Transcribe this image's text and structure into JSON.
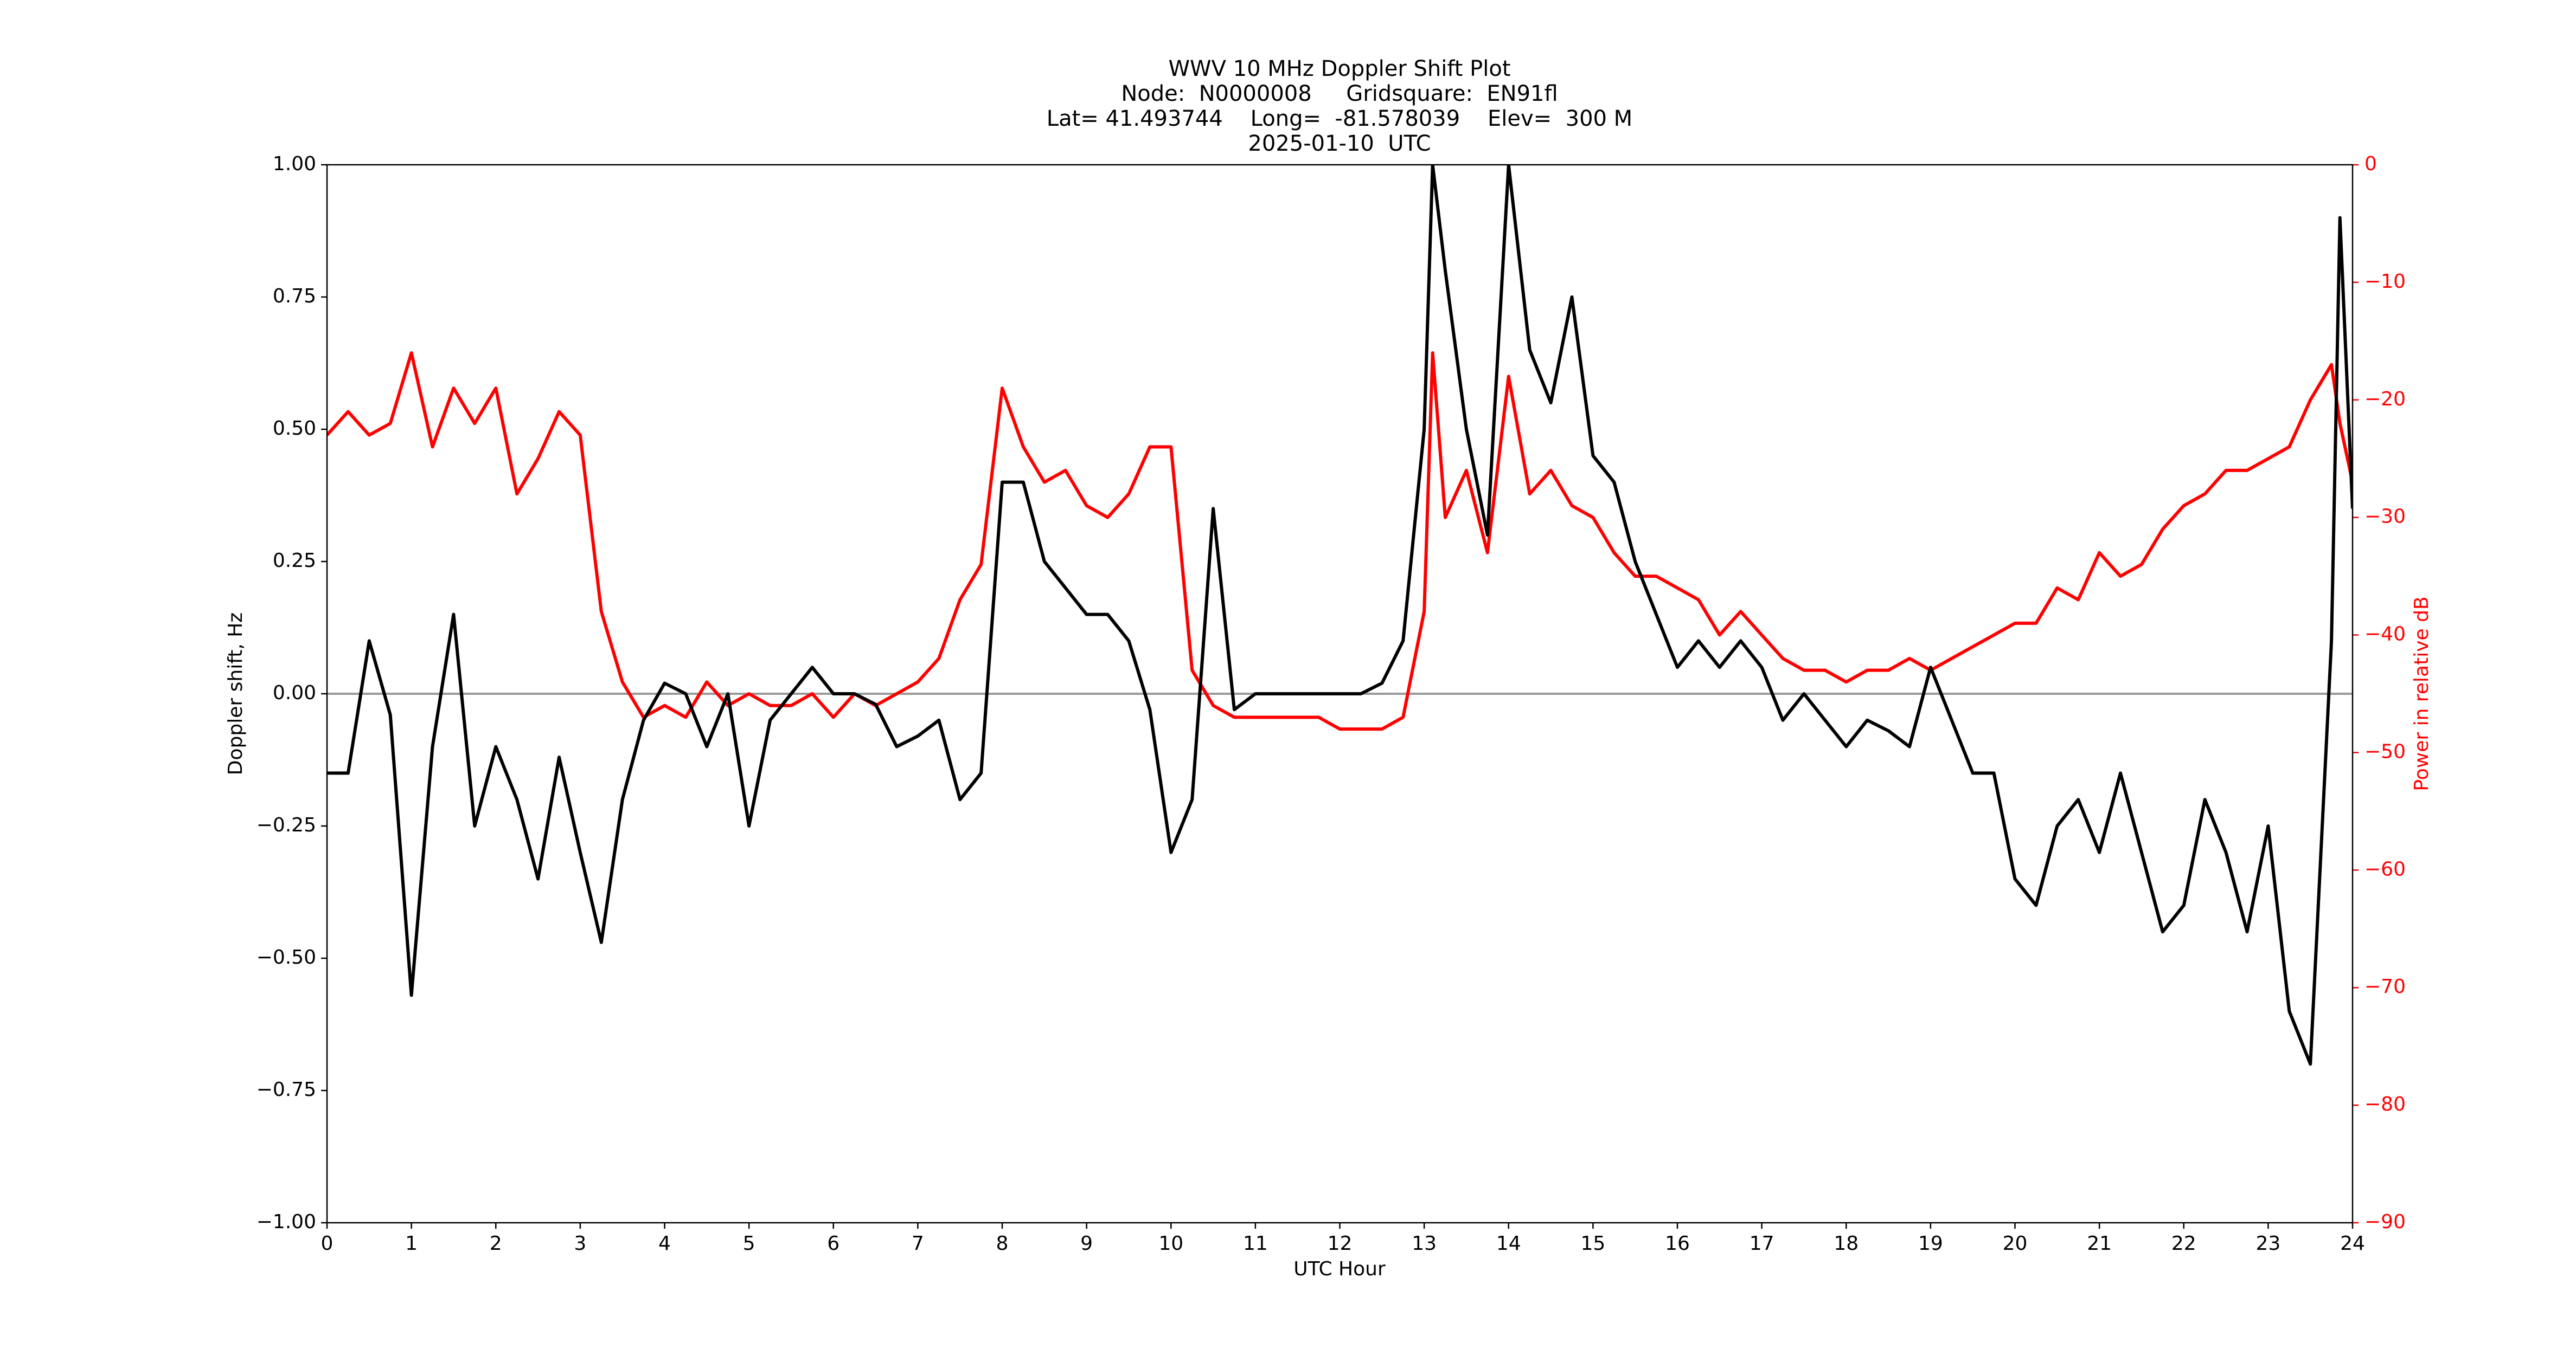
{
  "chart_data": {
    "type": "line",
    "title": "WWV 10 MHz Doppler Shift Plot",
    "subtitle": [
      "Node:  N0000008     Gridsquare:  EN91fl",
      "Lat= 41.493744    Long=  -81.578039    Elev=  300 M",
      "2025-01-10  UTC"
    ],
    "x_label": "UTC Hour",
    "y_label": "Doppler shift, Hz",
    "y2_label": "Power in relative dB",
    "x": [
      0,
      0.25,
      0.5,
      0.75,
      1,
      1.25,
      1.5,
      1.75,
      2,
      2.25,
      2.5,
      2.75,
      3,
      3.25,
      3.5,
      3.75,
      4,
      4.25,
      4.5,
      4.75,
      5,
      5.25,
      5.5,
      5.75,
      6,
      6.25,
      6.5,
      6.75,
      7,
      7.25,
      7.5,
      7.75,
      8,
      8.25,
      8.5,
      8.75,
      9,
      9.25,
      9.5,
      9.75,
      10,
      10.25,
      10.5,
      10.75,
      11,
      11.25,
      11.5,
      11.75,
      12,
      12.25,
      12.5,
      12.75,
      13,
      13.1,
      13.25,
      13.5,
      13.75,
      14,
      14.25,
      14.5,
      14.75,
      15,
      15.25,
      15.5,
      15.75,
      16,
      16.25,
      16.5,
      16.75,
      17,
      17.25,
      17.5,
      17.75,
      18,
      18.25,
      18.5,
      18.75,
      19,
      19.25,
      19.5,
      19.75,
      20,
      20.25,
      20.5,
      20.75,
      21,
      21.25,
      21.5,
      21.75,
      22,
      22.25,
      22.5,
      22.75,
      23,
      23.25,
      23.5,
      23.75,
      23.85,
      24
    ],
    "series": [
      {
        "color": "#000000",
        "values": [
          -0.15,
          -0.15,
          0.1,
          -0.04,
          -0.57,
          -0.1,
          0.15,
          -0.25,
          -0.1,
          -0.2,
          -0.35,
          -0.12,
          -0.3,
          -0.47,
          -0.2,
          -0.05,
          0.02,
          0,
          -0.1,
          0,
          -0.25,
          -0.05,
          0,
          0.05,
          0,
          0,
          -0.02,
          -0.1,
          -0.08,
          -0.05,
          -0.2,
          -0.15,
          0.4,
          0.4,
          0.25,
          0.2,
          0.15,
          0.15,
          0.1,
          -0.03,
          -0.3,
          -0.2,
          0.35,
          -0.03,
          0,
          0,
          0,
          0,
          0,
          0,
          0.02,
          0.1,
          0.5,
          1.0,
          0.8,
          0.5,
          0.3,
          1.0,
          0.65,
          0.55,
          0.75,
          0.45,
          0.4,
          0.25,
          0.15,
          0.05,
          0.1,
          0.05,
          0.1,
          0.05,
          -0.05,
          0,
          -0.05,
          -0.1,
          -0.05,
          -0.07,
          -0.1,
          0.05,
          -0.05,
          -0.15,
          -0.15,
          -0.35,
          -0.4,
          -0.25,
          -0.2,
          -0.3,
          -0.15,
          -0.3,
          -0.45,
          -0.4,
          -0.2,
          -0.3,
          -0.45,
          -0.25,
          -0.6,
          -0.7,
          0.1,
          0.9,
          0.35
        ]
      },
      {
        "color": "#ff0000",
        "axis": "y2",
        "values": [
          -23,
          -21,
          -23,
          -22,
          -16,
          -24,
          -19,
          -22,
          -19,
          -28,
          -25,
          -21,
          -23,
          -38,
          -44,
          -47,
          -46,
          -47,
          -44,
          -46,
          -45,
          -46,
          -46,
          -45,
          -47,
          -45,
          -46,
          -45,
          -44,
          -42,
          -37,
          -34,
          -19,
          -24,
          -27,
          -26,
          -29,
          -30,
          -28,
          -24,
          -24,
          -43,
          -46,
          -47,
          -47,
          -47,
          -47,
          -47,
          -48,
          -48,
          -48,
          -47,
          -38,
          -16,
          -30,
          -26,
          -33,
          -18,
          -28,
          -26,
          -29,
          -30,
          -33,
          -35,
          -35,
          -36,
          -37,
          -40,
          -38,
          -40,
          -42,
          -43,
          -43,
          -44,
          -43,
          -43,
          -42,
          -43,
          -42,
          -41,
          -40,
          -39,
          -39,
          -36,
          -37,
          -33,
          -35,
          -34,
          -31,
          -29,
          -28,
          -26,
          -26,
          -25,
          -24,
          -20,
          -17,
          -22,
          -27
        ]
      }
    ],
    "xlim": [
      0,
      24
    ],
    "xticks": [
      0,
      1,
      2,
      3,
      4,
      5,
      6,
      7,
      8,
      9,
      10,
      11,
      12,
      13,
      14,
      15,
      16,
      17,
      18,
      19,
      20,
      21,
      22,
      23,
      24
    ],
    "ylim": [
      -1,
      1
    ],
    "yticks": [
      {
        "value": -1,
        "label": "−1.00"
      },
      {
        "value": -0.75,
        "label": "−0.75"
      },
      {
        "value": -0.5,
        "label": "−0.50"
      },
      {
        "value": -0.25,
        "label": "−0.25"
      },
      {
        "value": 0,
        "label": "0.00"
      },
      {
        "value": 0.25,
        "label": "0.25"
      },
      {
        "value": 0.5,
        "label": "0.50"
      },
      {
        "value": 0.75,
        "label": "0.75"
      },
      {
        "value": 1,
        "label": "1.00"
      }
    ],
    "y2lim": [
      -90,
      0
    ],
    "y2ticks": [
      {
        "value": -90,
        "label": "−90"
      },
      {
        "value": -80,
        "label": "−80"
      },
      {
        "value": -70,
        "label": "−70"
      },
      {
        "value": -60,
        "label": "−60"
      },
      {
        "value": -50,
        "label": "−50"
      },
      {
        "value": -40,
        "label": "−40"
      },
      {
        "value": -30,
        "label": "−30"
      },
      {
        "value": -20,
        "label": "−20"
      },
      {
        "value": -10,
        "label": "−10"
      },
      0
    ],
    "y2_color": "#ff0000",
    "zero_line": 0
  }
}
